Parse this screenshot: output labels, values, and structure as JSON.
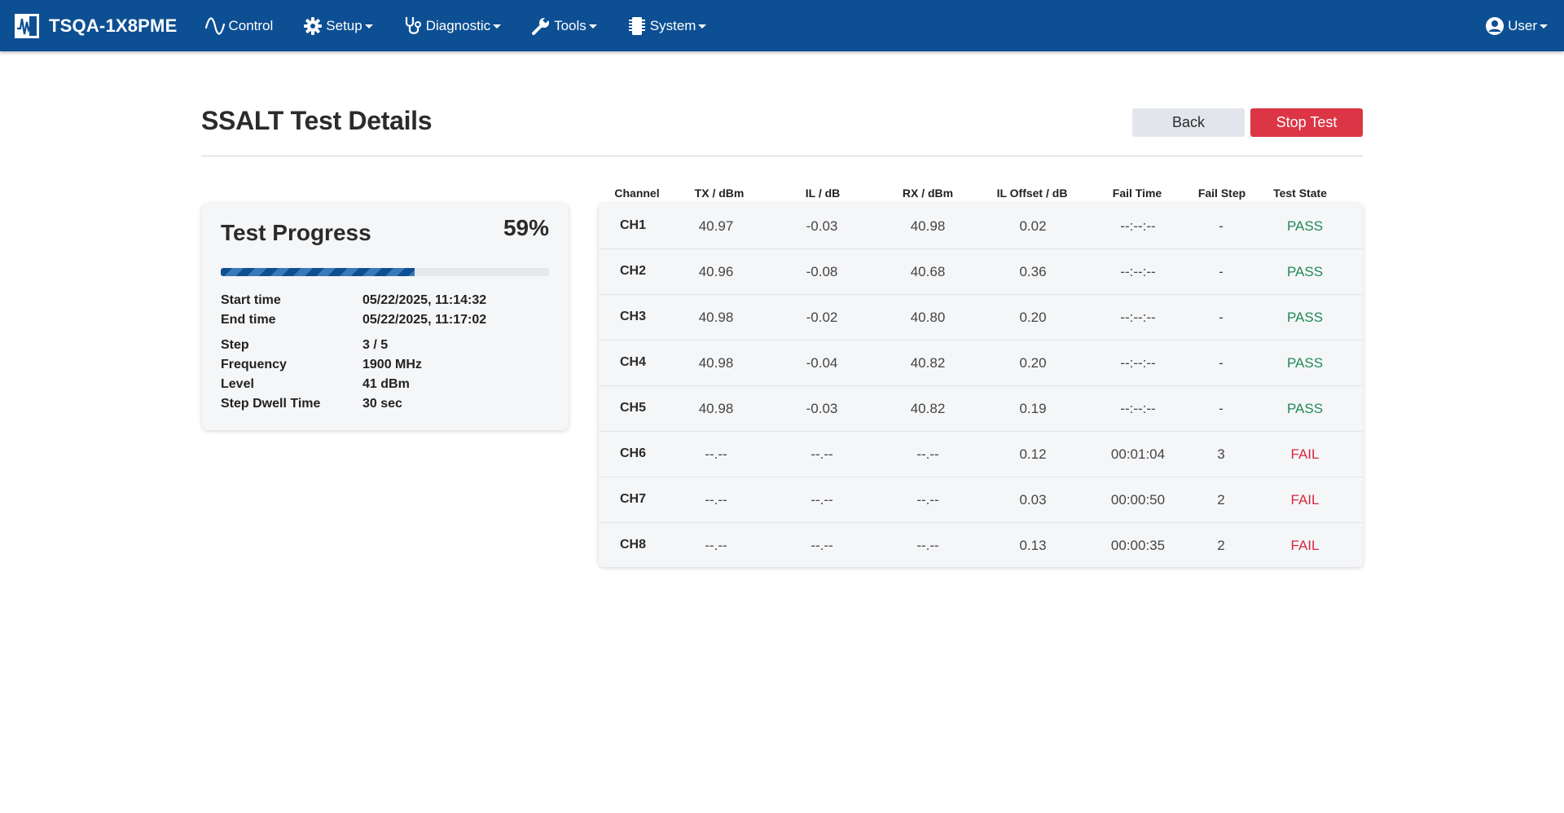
{
  "nav": {
    "brand": "TSQA-1X8PME",
    "items": [
      {
        "label": "Control",
        "icon": "sine-wave-icon",
        "dropdown": false
      },
      {
        "label": "Setup",
        "icon": "gear-icon",
        "dropdown": true
      },
      {
        "label": "Diagnostic",
        "icon": "stethoscope-icon",
        "dropdown": true
      },
      {
        "label": "Tools",
        "icon": "wrench-icon",
        "dropdown": true
      },
      {
        "label": "System",
        "icon": "chip-icon",
        "dropdown": true
      }
    ],
    "user": "User",
    "colors": {
      "navbar": "#0d4f93"
    }
  },
  "page": {
    "title": "SSALT Test Details",
    "back_label": "Back",
    "stop_label": "Stop Test"
  },
  "progress": {
    "title": "Test Progress",
    "percent_label": "59%",
    "percent": 59,
    "start_time_label": "Start time",
    "start_time": "05/22/2025, 11:14:32",
    "end_time_label": "End time",
    "end_time": "05/22/2025, 11:17:02",
    "step_label": "Step",
    "step": "3 / 5",
    "frequency_label": "Frequency",
    "frequency": "1900 MHz",
    "level_label": "Level",
    "level": "41 dBm",
    "dwell_label": "Step Dwell Time",
    "dwell": "30 sec"
  },
  "table": {
    "headers": [
      "Channel",
      "TX / dBm",
      "IL / dB",
      "RX / dBm",
      "IL Offset / dB",
      "Fail Time",
      "Fail Step",
      "Test State"
    ],
    "rows": [
      [
        "CH1",
        "40.97",
        "-0.03",
        "40.98",
        "0.02",
        "--:--:--",
        "-",
        "PASS"
      ],
      [
        "CH2",
        "40.96",
        "-0.08",
        "40.68",
        "0.36",
        "--:--:--",
        "-",
        "PASS"
      ],
      [
        "CH3",
        "40.98",
        "-0.02",
        "40.80",
        "0.20",
        "--:--:--",
        "-",
        "PASS"
      ],
      [
        "CH4",
        "40.98",
        "-0.04",
        "40.82",
        "0.20",
        "--:--:--",
        "-",
        "PASS"
      ],
      [
        "CH5",
        "40.98",
        "-0.03",
        "40.82",
        "0.19",
        "--:--:--",
        "-",
        "PASS"
      ],
      [
        "CH6",
        "--.--",
        "--.--",
        "--.--",
        "0.12",
        "00:01:04",
        "3",
        "FAIL"
      ],
      [
        "CH7",
        "--.--",
        "--.--",
        "--.--",
        "0.03",
        "00:00:50",
        "2",
        "FAIL"
      ],
      [
        "CH8",
        "--.--",
        "--.--",
        "--.--",
        "0.13",
        "00:00:35",
        "2",
        "FAIL"
      ]
    ],
    "state_colors": {
      "PASS": "#1e8a55",
      "FAIL": "#d7263d"
    }
  }
}
